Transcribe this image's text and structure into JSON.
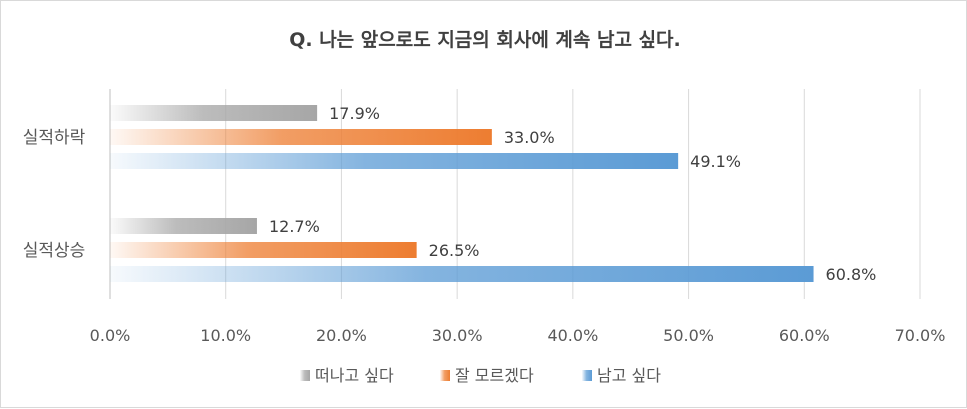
{
  "chart_data": {
    "type": "bar",
    "orientation": "horizontal",
    "title": "Q. 나는 앞으로도 지금의 회사에 계속 남고 싶다.",
    "categories": [
      "실적하락",
      "실적상승"
    ],
    "series": [
      {
        "name": "떠나고 싶다",
        "values": [
          17.9,
          12.7
        ],
        "labels": [
          "17.9%",
          "12.7%"
        ],
        "color": "#a6a6a6"
      },
      {
        "name": "잘 모르겠다",
        "values": [
          33.0,
          26.5
        ],
        "labels": [
          "33.0%",
          "26.5%"
        ],
        "color": "#ed7d31"
      },
      {
        "name": "남고 싶다",
        "values": [
          49.1,
          60.8
        ],
        "labels": [
          "49.1%",
          "60.8%"
        ],
        "color": "#5b9bd5"
      }
    ],
    "xlim": [
      0,
      70
    ],
    "xticks": [
      "0.0%",
      "10.0%",
      "20.0%",
      "30.0%",
      "40.0%",
      "50.0%",
      "60.0%",
      "70.0%"
    ],
    "grid": true,
    "legend_position": "bottom"
  }
}
